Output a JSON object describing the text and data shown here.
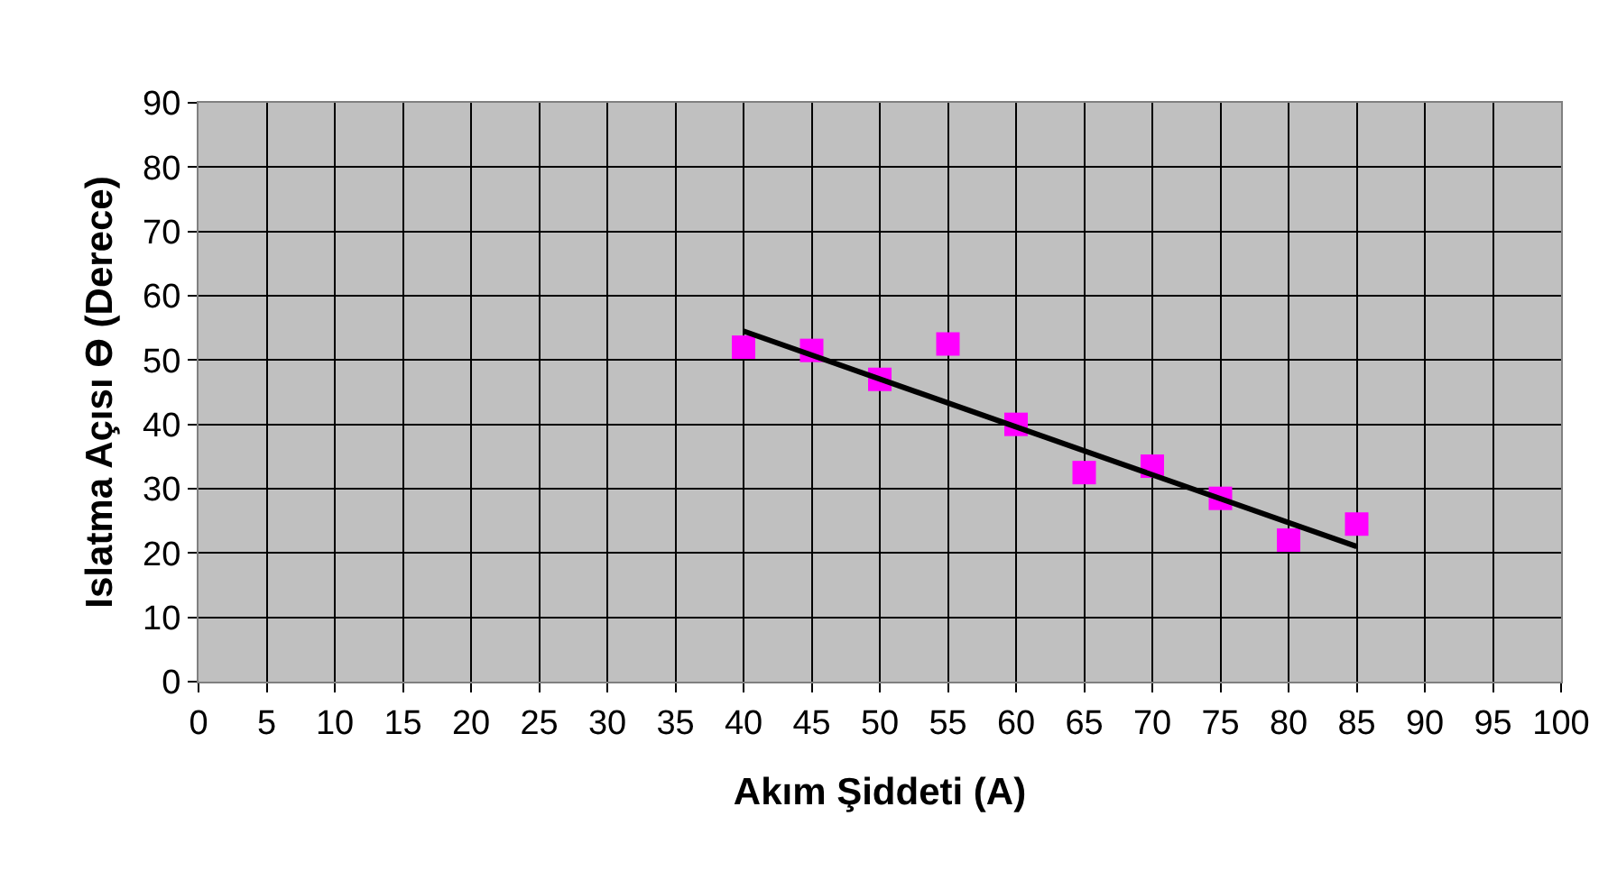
{
  "chart_data": {
    "type": "scatter",
    "xlabel": "Akım Şiddeti (A)",
    "ylabel": "Islatma Açısı Ɵ (Derece)",
    "xlim": [
      0,
      100
    ],
    "xticks": [
      0,
      5,
      10,
      15,
      20,
      25,
      30,
      35,
      40,
      45,
      50,
      55,
      60,
      65,
      70,
      75,
      80,
      85,
      90,
      95,
      100
    ],
    "ylim": [
      0,
      90
    ],
    "yticks": [
      0,
      10,
      20,
      30,
      40,
      50,
      60,
      70,
      80,
      90
    ],
    "grid": true,
    "series": [
      {
        "type": "scatter",
        "color": "#ff00ff",
        "marker": "square",
        "x": [
          40,
          45,
          50,
          55,
          60,
          65,
          70,
          75,
          80,
          85
        ],
        "values": [
          52,
          51.5,
          47,
          52.5,
          40,
          32.5,
          33.5,
          28.5,
          22,
          24.5
        ]
      },
      {
        "type": "line",
        "color": "#000000",
        "marker": "none",
        "line_style": "solid",
        "x": [
          40,
          85
        ],
        "values": [
          54.5,
          21
        ]
      }
    ]
  }
}
